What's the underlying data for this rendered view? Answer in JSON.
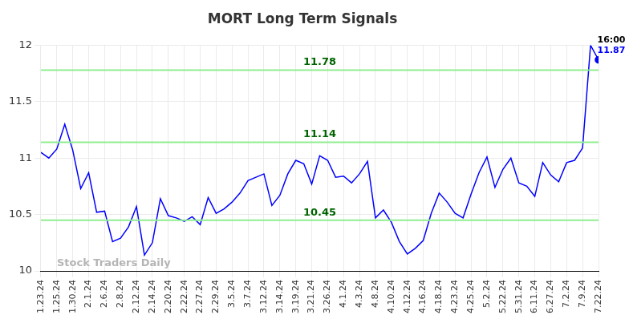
{
  "chart_data": {
    "type": "line",
    "title": "MORT Long Term Signals",
    "categories": [
      "1.23.24",
      null,
      "1.25.24",
      null,
      "1.30.24",
      null,
      "2.1.24",
      null,
      "2.6.24",
      null,
      "2.8.24",
      null,
      "2.12.24",
      null,
      "2.14.24",
      null,
      "2.20.24",
      null,
      "2.22.24",
      null,
      "2.27.24",
      null,
      "2.29.24",
      null,
      "3.5.24",
      null,
      "3.7.24",
      null,
      "3.12.24",
      null,
      "3.14.24",
      null,
      "3.19.24",
      null,
      "3.21.24",
      null,
      "3.26.24",
      null,
      "4.1.24",
      null,
      "4.3.24",
      null,
      "4.8.24",
      null,
      "4.10.24",
      null,
      "4.12.24",
      null,
      "4.16.24",
      null,
      "4.18.24",
      null,
      "4.23.24",
      null,
      "4.25.24",
      null,
      "5.2.24",
      null,
      "5.22.24",
      null,
      "5.31.24",
      null,
      "6.11.24",
      null,
      "6.27.24",
      null,
      "7.2.24",
      null,
      "7.9.24",
      null,
      "7.22.24"
    ],
    "values": [
      11.05,
      11.0,
      11.08,
      11.3,
      11.07,
      10.73,
      10.87,
      10.52,
      10.53,
      10.26,
      10.29,
      10.39,
      10.57,
      10.14,
      10.25,
      10.64,
      10.49,
      10.47,
      10.44,
      10.48,
      10.41,
      10.65,
      10.51,
      10.55,
      10.61,
      10.69,
      10.8,
      10.83,
      10.86,
      10.58,
      10.67,
      10.86,
      10.98,
      10.95,
      10.77,
      11.02,
      10.98,
      10.83,
      10.84,
      10.78,
      10.86,
      10.97,
      10.47,
      10.54,
      10.43,
      10.26,
      10.15,
      10.2,
      10.27,
      10.51,
      10.69,
      10.61,
      10.51,
      10.47,
      10.68,
      10.87,
      11.01,
      10.74,
      10.9,
      11.0,
      10.78,
      10.75,
      10.66,
      10.96,
      10.85,
      10.79,
      10.96,
      10.98,
      11.09,
      12.0,
      11.87
    ],
    "color": "#0000ff",
    "ylim": [
      10,
      12
    ],
    "yticks": [
      10,
      10.5,
      11,
      11.5,
      12
    ],
    "grid": true,
    "signals": {
      "values": [
        11.78,
        11.14,
        10.45
      ],
      "color": "#90ee90"
    },
    "annotation": {
      "time": "16:00",
      "value": 11.87
    },
    "watermark": "Stock Traders Daily"
  }
}
